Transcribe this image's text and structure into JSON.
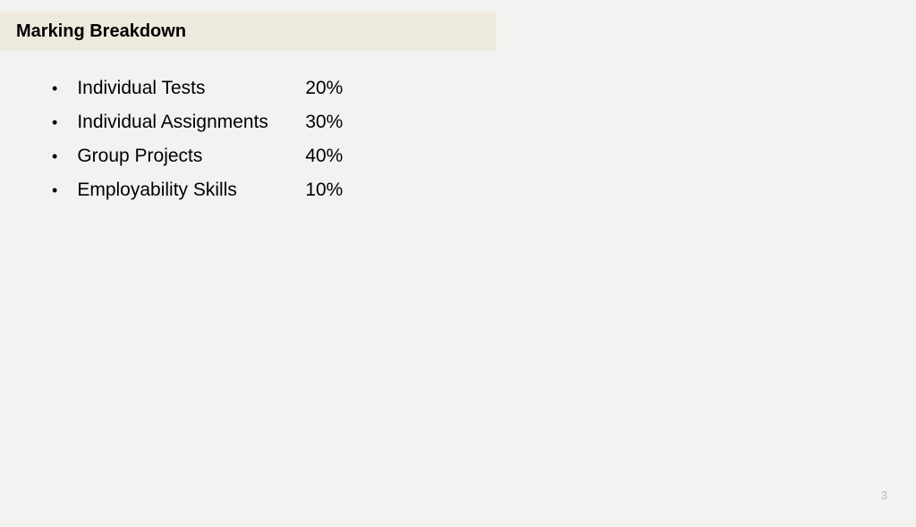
{
  "title": "Marking Breakdown",
  "items": [
    {
      "label": "Individual Tests",
      "percent": "20%"
    },
    {
      "label": "Individual Assignments",
      "percent": "30%"
    },
    {
      "label": "Group Projects",
      "percent": "40%"
    },
    {
      "label": "Employability Skills",
      "percent": "10%"
    }
  ],
  "pageNumber": "3",
  "colors": {
    "background": "#f2f2f0",
    "titleBar": "#edeadd",
    "text": "#000000",
    "pageNumber": "#b8b8b8"
  },
  "typography": {
    "titleFontSize": 20,
    "titleFontWeight": "bold",
    "itemFontSize": 21,
    "pageNumberFontSize": 13,
    "fontFamily": "Arial"
  },
  "layout": {
    "titleBarWidth": 555,
    "labelColumnWidth": 255,
    "listMarginLeft": 58,
    "listMarginTop": 30,
    "itemSpacing": 14
  }
}
